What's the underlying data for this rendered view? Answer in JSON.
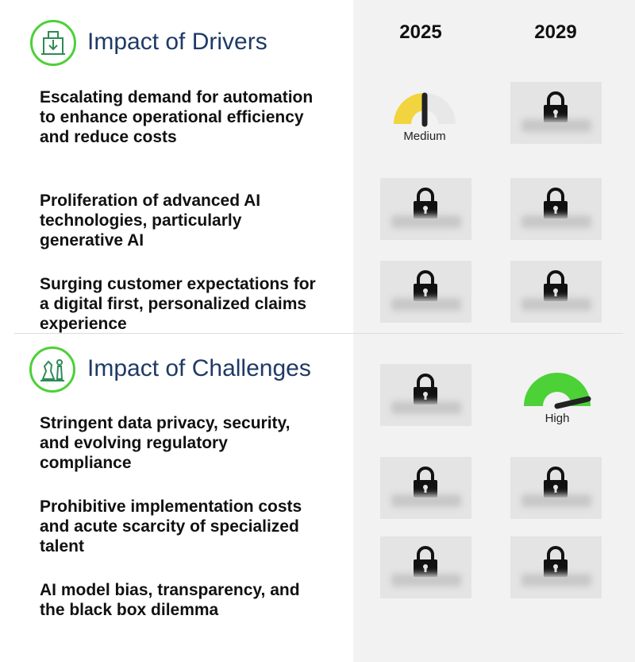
{
  "years": [
    "2025",
    "2029"
  ],
  "drivers": {
    "title": "Impact of Drivers",
    "items": [
      {
        "text": "Escalating demand for automation to enhance operational efficiency and reduce costs",
        "rating_2025": "Medium",
        "level_2025": 0.5,
        "rating_2029": "locked"
      },
      {
        "text": "Proliferation of advanced AI technologies, particularly generative AI",
        "rating_2025": "locked",
        "rating_2029": "locked"
      },
      {
        "text": "Surging customer expectations for a digital first, personalized claims experience",
        "rating_2025": "locked",
        "rating_2029": "locked"
      }
    ]
  },
  "challenges": {
    "title": "Impact of Challenges",
    "items": [
      {
        "text": "Stringent data privacy, security, and evolving regulatory compliance",
        "rating_2025": "locked",
        "rating_2029": "High",
        "level_2029": 0.9
      },
      {
        "text": "Prohibitive implementation costs and acute scarcity of specialized talent",
        "rating_2025": "locked",
        "rating_2029": "locked"
      },
      {
        "text": "AI model bias, transparency, and the black box dilemma",
        "rating_2025": "locked",
        "rating_2029": "locked"
      }
    ]
  },
  "colors": {
    "accent_green": "#4cd137",
    "medium_yellow": "#f2d43e",
    "title_blue": "#1f3a66"
  }
}
